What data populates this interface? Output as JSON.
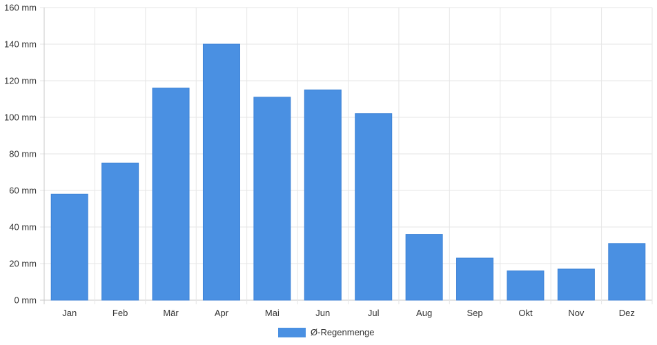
{
  "chart_data": {
    "type": "bar",
    "categories": [
      "Jan",
      "Feb",
      "Mär",
      "Apr",
      "Mai",
      "Jun",
      "Jul",
      "Aug",
      "Sep",
      "Okt",
      "Nov",
      "Dez"
    ],
    "series": [
      {
        "name": "Ø-Regenmenge",
        "values": [
          58,
          75,
          116,
          140,
          111,
          115,
          102,
          36,
          23,
          16,
          17,
          31
        ],
        "color": "#4a90e2"
      }
    ],
    "y_ticks": [
      "0 mm",
      "20 mm",
      "40 mm",
      "60 mm",
      "80 mm",
      "100 mm",
      "120 mm",
      "140 mm",
      "160 mm"
    ],
    "ylim": [
      0,
      160
    ],
    "y_step": 20,
    "grid": true,
    "legend_position": "bottom-center",
    "colors": {
      "grid": "#e6e6e6",
      "axis": "#c8c8c8",
      "text": "#333333"
    }
  }
}
